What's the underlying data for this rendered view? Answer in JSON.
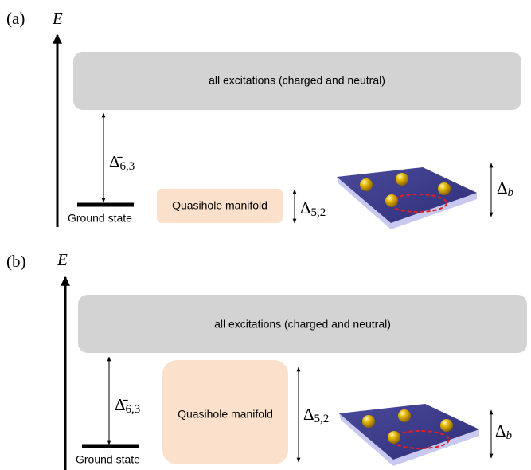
{
  "panels": [
    {
      "label": "(a)",
      "axis": "E",
      "excitations": "all excitations (charged and neutral)",
      "gap_main": {
        "symbol": "Δ̄",
        "sub": "6,3"
      },
      "ground": "Ground state",
      "quasihole": "Quasihole manifold",
      "gap_qh": {
        "symbol": "Δ",
        "sub": "5,2"
      },
      "gap_b": {
        "symbol": "Δ",
        "sub": "b"
      }
    },
    {
      "label": "(b)",
      "axis": "E",
      "excitations": "all excitations (charged and neutral)",
      "gap_main": {
        "symbol": "Δ̄",
        "sub": "6,3"
      },
      "ground": "Ground state",
      "quasihole": "Quasihole manifold",
      "gap_qh": {
        "symbol": "Δ",
        "sub": "5,2"
      },
      "gap_b": {
        "symbol": "Δ",
        "sub": "b"
      }
    }
  ]
}
